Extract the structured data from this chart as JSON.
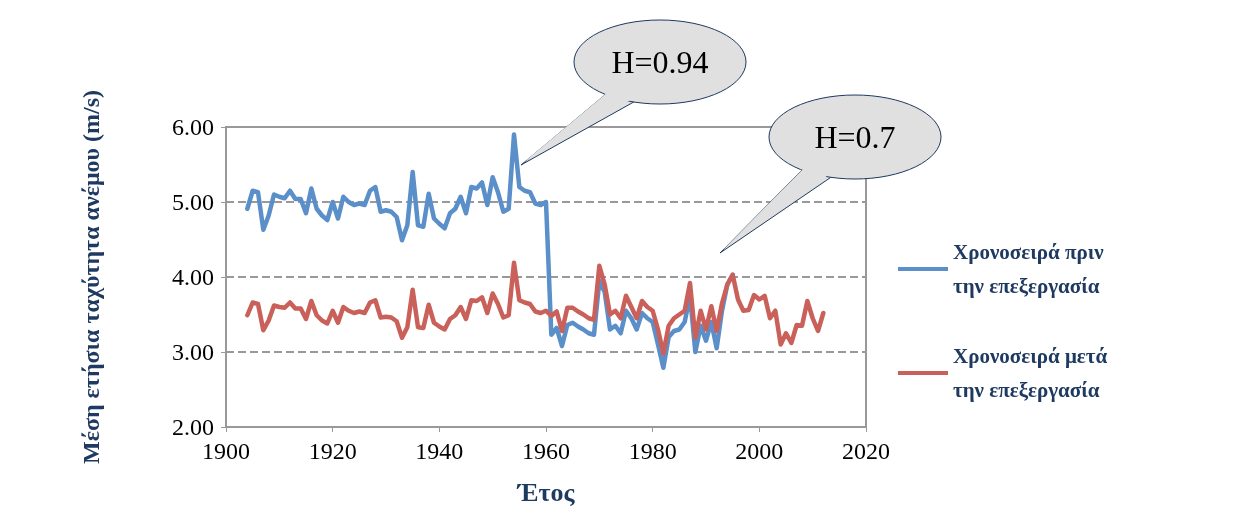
{
  "chart_data": {
    "type": "line",
    "xlabel": "Έτος",
    "ylabel": "Μέση ετήσια ταχύτητα ανέμου (m/s)",
    "x": [
      1904,
      1905,
      1906,
      1907,
      1908,
      1909,
      1910,
      1911,
      1912,
      1913,
      1914,
      1915,
      1916,
      1917,
      1918,
      1919,
      1920,
      1921,
      1922,
      1923,
      1924,
      1925,
      1926,
      1927,
      1928,
      1929,
      1930,
      1931,
      1932,
      1933,
      1934,
      1935,
      1936,
      1937,
      1938,
      1939,
      1940,
      1941,
      1942,
      1943,
      1944,
      1945,
      1946,
      1947,
      1948,
      1949,
      1950,
      1951,
      1952,
      1953,
      1954,
      1955,
      1956,
      1957,
      1958,
      1959,
      1960,
      1961,
      1962,
      1963,
      1964,
      1965,
      1966,
      1967,
      1968,
      1969,
      1970,
      1971,
      1972,
      1973,
      1974,
      1975,
      1976,
      1977,
      1978,
      1979,
      1980,
      1981,
      1982,
      1983,
      1984,
      1985,
      1986,
      1987,
      1988,
      1989,
      1990,
      1991,
      1992,
      1993,
      1994,
      1995,
      1996,
      1997,
      1998,
      1999,
      2000,
      2001,
      2002,
      2003,
      2004,
      2005,
      2006,
      2007,
      2008,
      2009,
      2010,
      2011,
      2012
    ],
    "series": [
      {
        "name": "Χρονοσειρά πριν την επεξεργασία",
        "color": "#5b8fc9",
        "values": [
          4.91,
          5.15,
          5.13,
          4.63,
          4.82,
          5.1,
          5.07,
          5.05,
          5.15,
          5.04,
          5.04,
          4.85,
          5.18,
          4.91,
          4.82,
          4.76,
          5.0,
          4.78,
          5.07,
          5.0,
          4.96,
          4.98,
          4.96,
          5.15,
          5.2,
          4.87,
          4.89,
          4.87,
          4.8,
          4.49,
          4.69,
          5.4,
          4.69,
          4.67,
          5.11,
          4.78,
          4.71,
          4.65,
          4.85,
          4.91,
          5.07,
          4.85,
          5.2,
          5.18,
          5.26,
          4.96,
          5.33,
          5.13,
          4.87,
          4.91,
          5.9,
          5.2,
          5.15,
          5.13,
          4.98,
          4.96,
          5.0,
          3.23,
          3.32,
          3.08,
          3.36,
          3.39,
          3.34,
          3.3,
          3.25,
          3.23,
          3.95,
          3.8,
          3.3,
          3.35,
          3.25,
          3.55,
          3.45,
          3.3,
          3.52,
          3.45,
          3.4,
          3.1,
          2.79,
          3.2,
          3.28,
          3.3,
          3.4,
          3.75,
          3.0,
          3.35,
          3.15,
          3.4,
          3.05,
          3.55,
          3.9,
          4.03,
          null,
          null,
          null,
          null,
          null,
          null,
          null,
          null,
          null,
          null,
          null,
          null,
          null,
          null,
          null,
          null,
          null
        ]
      },
      {
        "name": "Χρονοσειρά μετά την επεξεργασία",
        "color": "#c9605a",
        "values": [
          3.49,
          3.66,
          3.64,
          3.29,
          3.42,
          3.62,
          3.6,
          3.59,
          3.66,
          3.58,
          3.58,
          3.44,
          3.68,
          3.49,
          3.42,
          3.38,
          3.55,
          3.39,
          3.6,
          3.55,
          3.52,
          3.54,
          3.52,
          3.66,
          3.69,
          3.46,
          3.47,
          3.46,
          3.41,
          3.19,
          3.33,
          3.83,
          3.33,
          3.32,
          3.63,
          3.39,
          3.34,
          3.3,
          3.44,
          3.49,
          3.6,
          3.44,
          3.69,
          3.68,
          3.73,
          3.52,
          3.78,
          3.64,
          3.46,
          3.49,
          4.19,
          3.69,
          3.66,
          3.64,
          3.54,
          3.52,
          3.55,
          3.48,
          3.54,
          3.28,
          3.59,
          3.59,
          3.54,
          3.5,
          3.45,
          3.43,
          4.15,
          3.9,
          3.5,
          3.55,
          3.45,
          3.75,
          3.6,
          3.45,
          3.68,
          3.6,
          3.55,
          3.3,
          2.98,
          3.35,
          3.45,
          3.5,
          3.55,
          3.92,
          3.19,
          3.55,
          3.3,
          3.61,
          3.28,
          3.65,
          3.9,
          4.03,
          3.7,
          3.55,
          3.56,
          3.76,
          3.7,
          3.75,
          3.45,
          3.55,
          3.1,
          3.25,
          3.12,
          3.36,
          3.35,
          3.68,
          3.45,
          3.28,
          3.52
        ]
      }
    ],
    "xlim": [
      1900,
      2020
    ],
    "xticks": [
      1900,
      1920,
      1940,
      1960,
      1980,
      2000,
      2020
    ],
    "ylim": [
      2,
      6
    ],
    "yticks": [
      {
        "value": 2,
        "label": "2.00"
      },
      {
        "value": 3,
        "label": "3.00"
      },
      {
        "value": 4,
        "label": "4.00"
      },
      {
        "value": 5,
        "label": "5.00"
      },
      {
        "value": 6,
        "label": "6.00"
      }
    ],
    "grid": "y",
    "legend": "right",
    "marker": "none",
    "line_style": "solid",
    "annotations": [
      "H=0.94",
      "H=0.7"
    ]
  }
}
